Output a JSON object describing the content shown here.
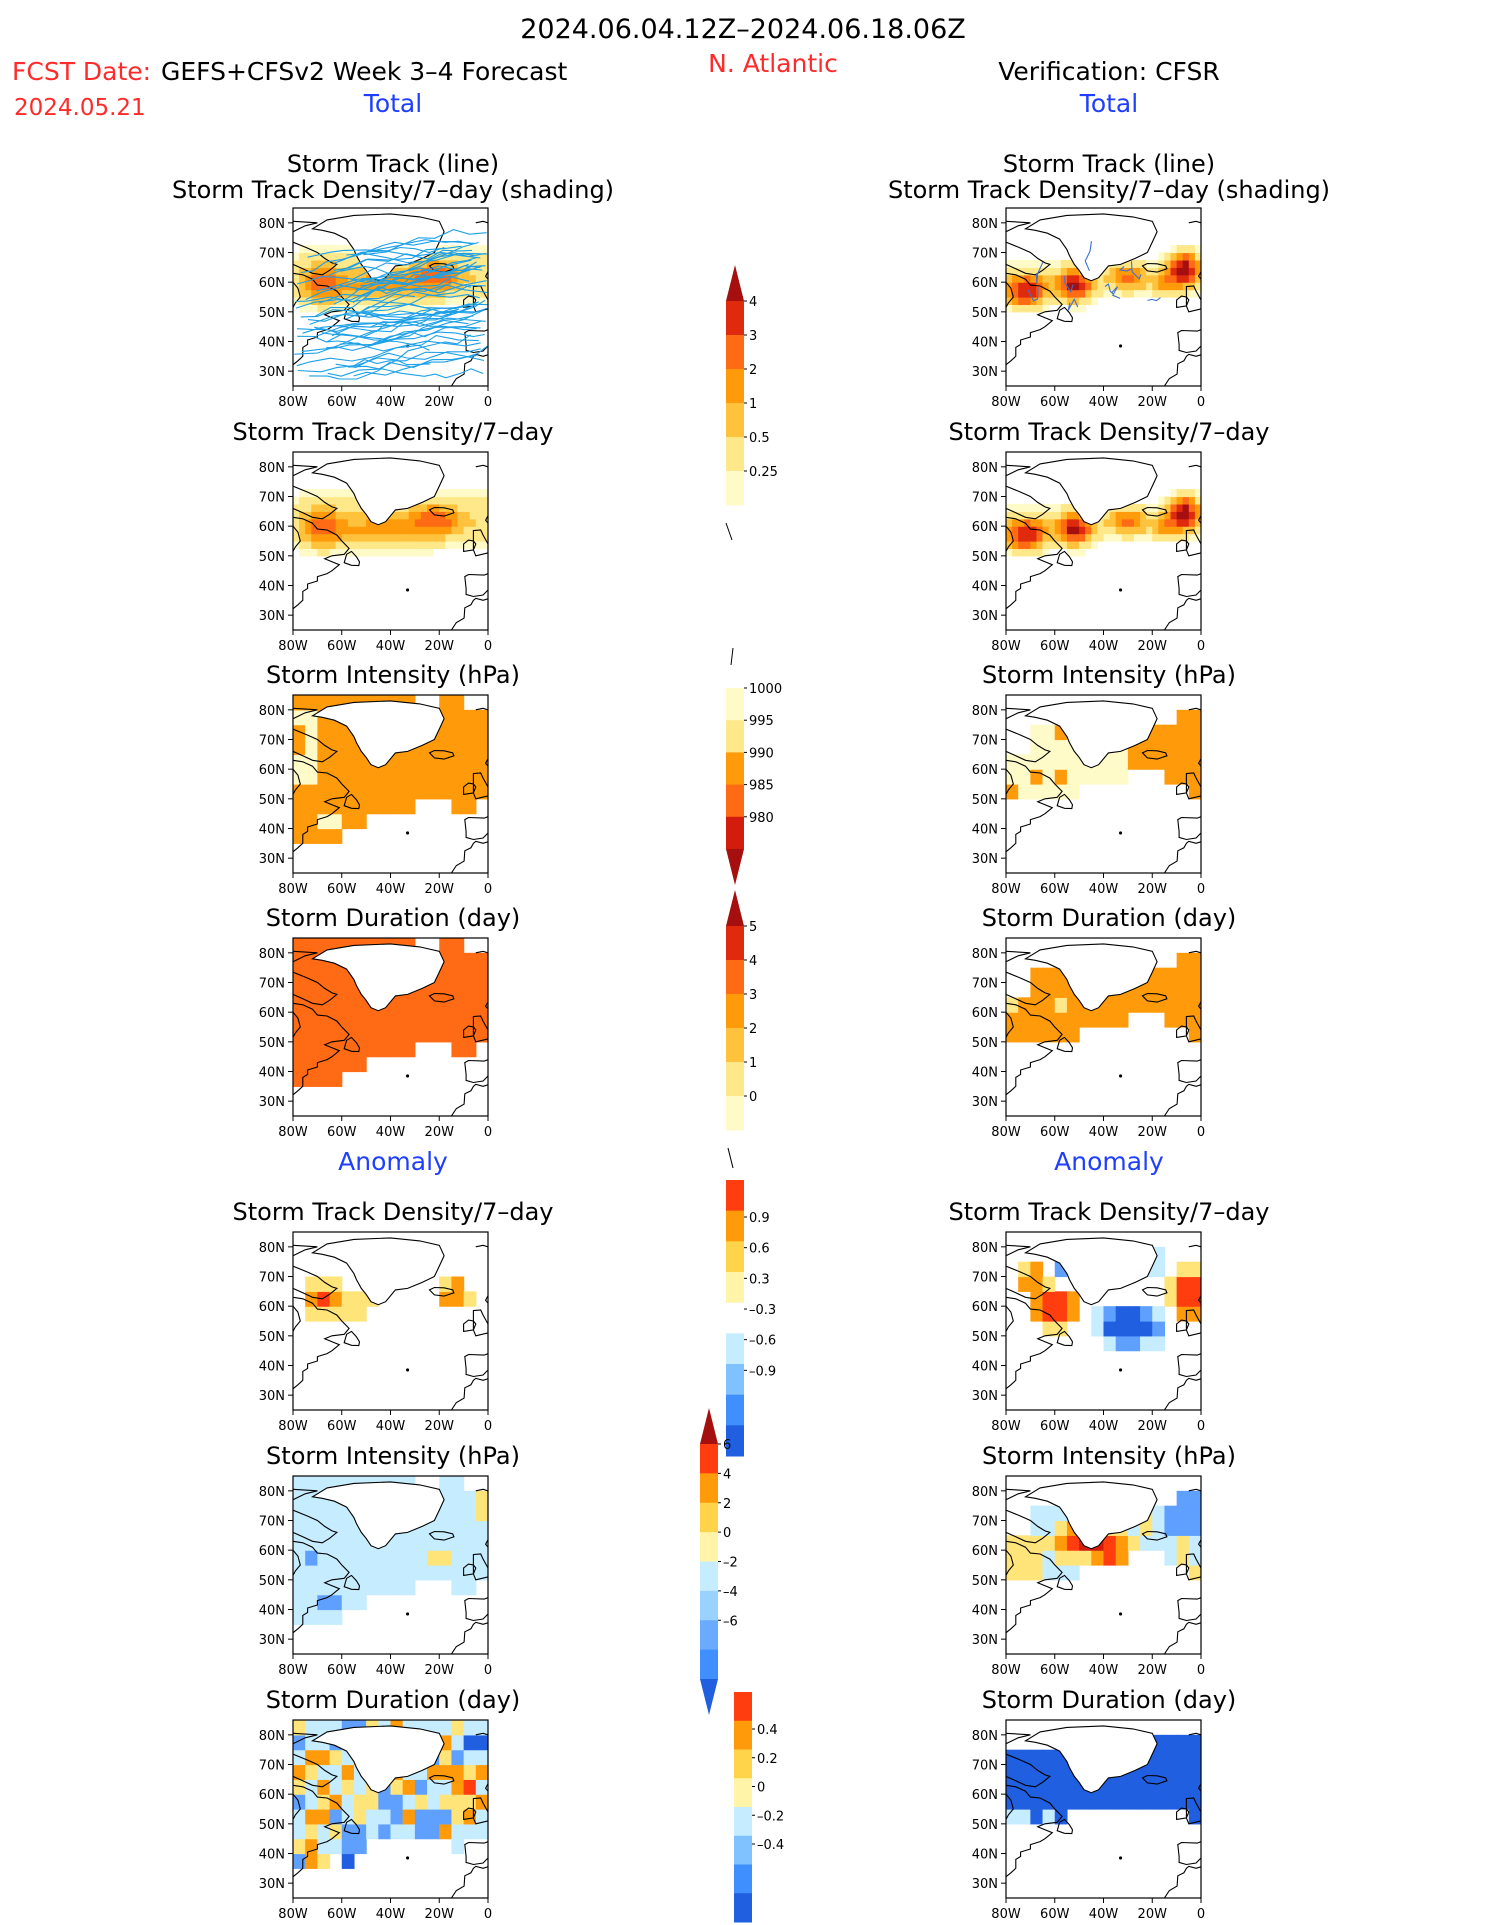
{
  "header": {
    "date_range": "2024.06.04.12Z–2024.06.18.06Z",
    "fcst_date_label": "FCST Date:",
    "fcst_date_value": "2024.05.21",
    "model_label": "GEFS+CFSv2 Week 3–4 Forecast",
    "region": "N. Atlantic",
    "verification": "Verification: CFSR",
    "left_section_total": "Total",
    "right_section_total": "Total",
    "left_section_anomaly": "Anomaly",
    "right_section_anomaly": "Anomaly"
  },
  "colors": {
    "title_red": "#ff2b2b",
    "section_blue": "#1f3fff",
    "track_line_forecast": "#1ea0e6",
    "track_line_verification": "#3f6fd0"
  },
  "map_axes": {
    "lon_ticks": [
      "80W",
      "60W",
      "40W",
      "20W",
      "0"
    ],
    "lat_ticks": [
      "80N",
      "70N",
      "60N",
      "50N",
      "40N",
      "30N"
    ],
    "lon_range": [
      -80,
      0
    ],
    "lat_range": [
      25,
      85
    ]
  },
  "panels": {
    "left": [
      {
        "title_line1": "Storm Track (line)",
        "title_line2": "Storm Track Density/7–day (shading)",
        "field": "density_tracks"
      },
      {
        "title_line1": "Storm Track Density/7–day",
        "title_line2": "",
        "field": "density"
      },
      {
        "title_line1": "Storm Intensity (hPa)",
        "title_line2": "",
        "field": "intensity"
      },
      {
        "title_line1": "Storm Duration (day)",
        "title_line2": "",
        "field": "duration"
      },
      {
        "title_line1": "Storm Track Density/7–day",
        "title_line2": "",
        "field": "density_anom"
      },
      {
        "title_line1": "Storm Intensity (hPa)",
        "title_line2": "",
        "field": "intensity_anom"
      },
      {
        "title_line1": "Storm Duration (day)",
        "title_line2": "",
        "field": "duration_anom"
      }
    ],
    "right": [
      {
        "title_line1": "Storm Track (line)",
        "title_line2": "Storm Track Density/7–day (shading)",
        "field": "density_tracks"
      },
      {
        "title_line1": "Storm Track Density/7–day",
        "title_line2": "",
        "field": "density"
      },
      {
        "title_line1": "Storm Intensity (hPa)",
        "title_line2": "",
        "field": "intensity"
      },
      {
        "title_line1": "Storm Duration (day)",
        "title_line2": "",
        "field": "duration"
      },
      {
        "title_line1": "Storm Track Density/7–day",
        "title_line2": "",
        "field": "density_anom"
      },
      {
        "title_line1": "Storm Intensity (hPa)",
        "title_line2": "",
        "field": "intensity_anom"
      },
      {
        "title_line1": "Storm Duration (day)",
        "title_line2": "",
        "field": "duration_anom"
      }
    ]
  },
  "colorbars": {
    "density": {
      "labels": [
        "4",
        "3",
        "2",
        "1",
        "0.5",
        "0.25"
      ],
      "colors": [
        "#a50f0f",
        "#e02a0e",
        "#ff6a14",
        "#ff9a0a",
        "#ffc23c",
        "#ffe88a",
        "#fffbc8"
      ],
      "arrow_top": true
    },
    "intensity": {
      "labels": [
        "1000",
        "995",
        "990",
        "985",
        "980"
      ],
      "colors": [
        "#fffbc8",
        "#ffe88a",
        "#ff9a0a",
        "#ff6a14",
        "#d21c0e",
        "#a50f0f"
      ],
      "arrow_bottom": true
    },
    "duration": {
      "labels": [
        "5",
        "4",
        "3",
        "2",
        "1",
        "0"
      ],
      "colors": [
        "#a50f0f",
        "#e02a0e",
        "#ff6a14",
        "#ff9a0a",
        "#ffc23c",
        "#ffe88a",
        "#fffbc8"
      ],
      "arrow_top": true
    },
    "density_anom": {
      "labels": [
        "0.9",
        "0.6",
        "0.3",
        "–0.3",
        "–0.6",
        "–0.9"
      ],
      "colors": [
        "#ff3d0f",
        "#ff9a0a",
        "#ffd44a",
        "#fff4a8",
        "#ffffff",
        "#c6ecff",
        "#7fc2ff",
        "#3f8fff",
        "#1f5fe0"
      ]
    },
    "intensity_anom": {
      "labels": [
        "6",
        "4",
        "2",
        "0",
        "–2",
        "–4",
        "–6"
      ],
      "colors": [
        "#a50f0f",
        "#ff3d0f",
        "#ff9a0a",
        "#ffd44a",
        "#fff4a8",
        "#c6ecff",
        "#9ad2ff",
        "#6aaaff",
        "#3f8fff",
        "#1f5fe0"
      ]
    },
    "duration_anom": {
      "labels": [
        "0.4",
        "0.2",
        "0",
        "–0.2",
        "–0.4"
      ],
      "colors": [
        "#ff3d0f",
        "#ff9a0a",
        "#ffd44a",
        "#fff4a8",
        "#c6ecff",
        "#7fc2ff",
        "#3f8fff",
        "#1f5fe0"
      ]
    }
  }
}
